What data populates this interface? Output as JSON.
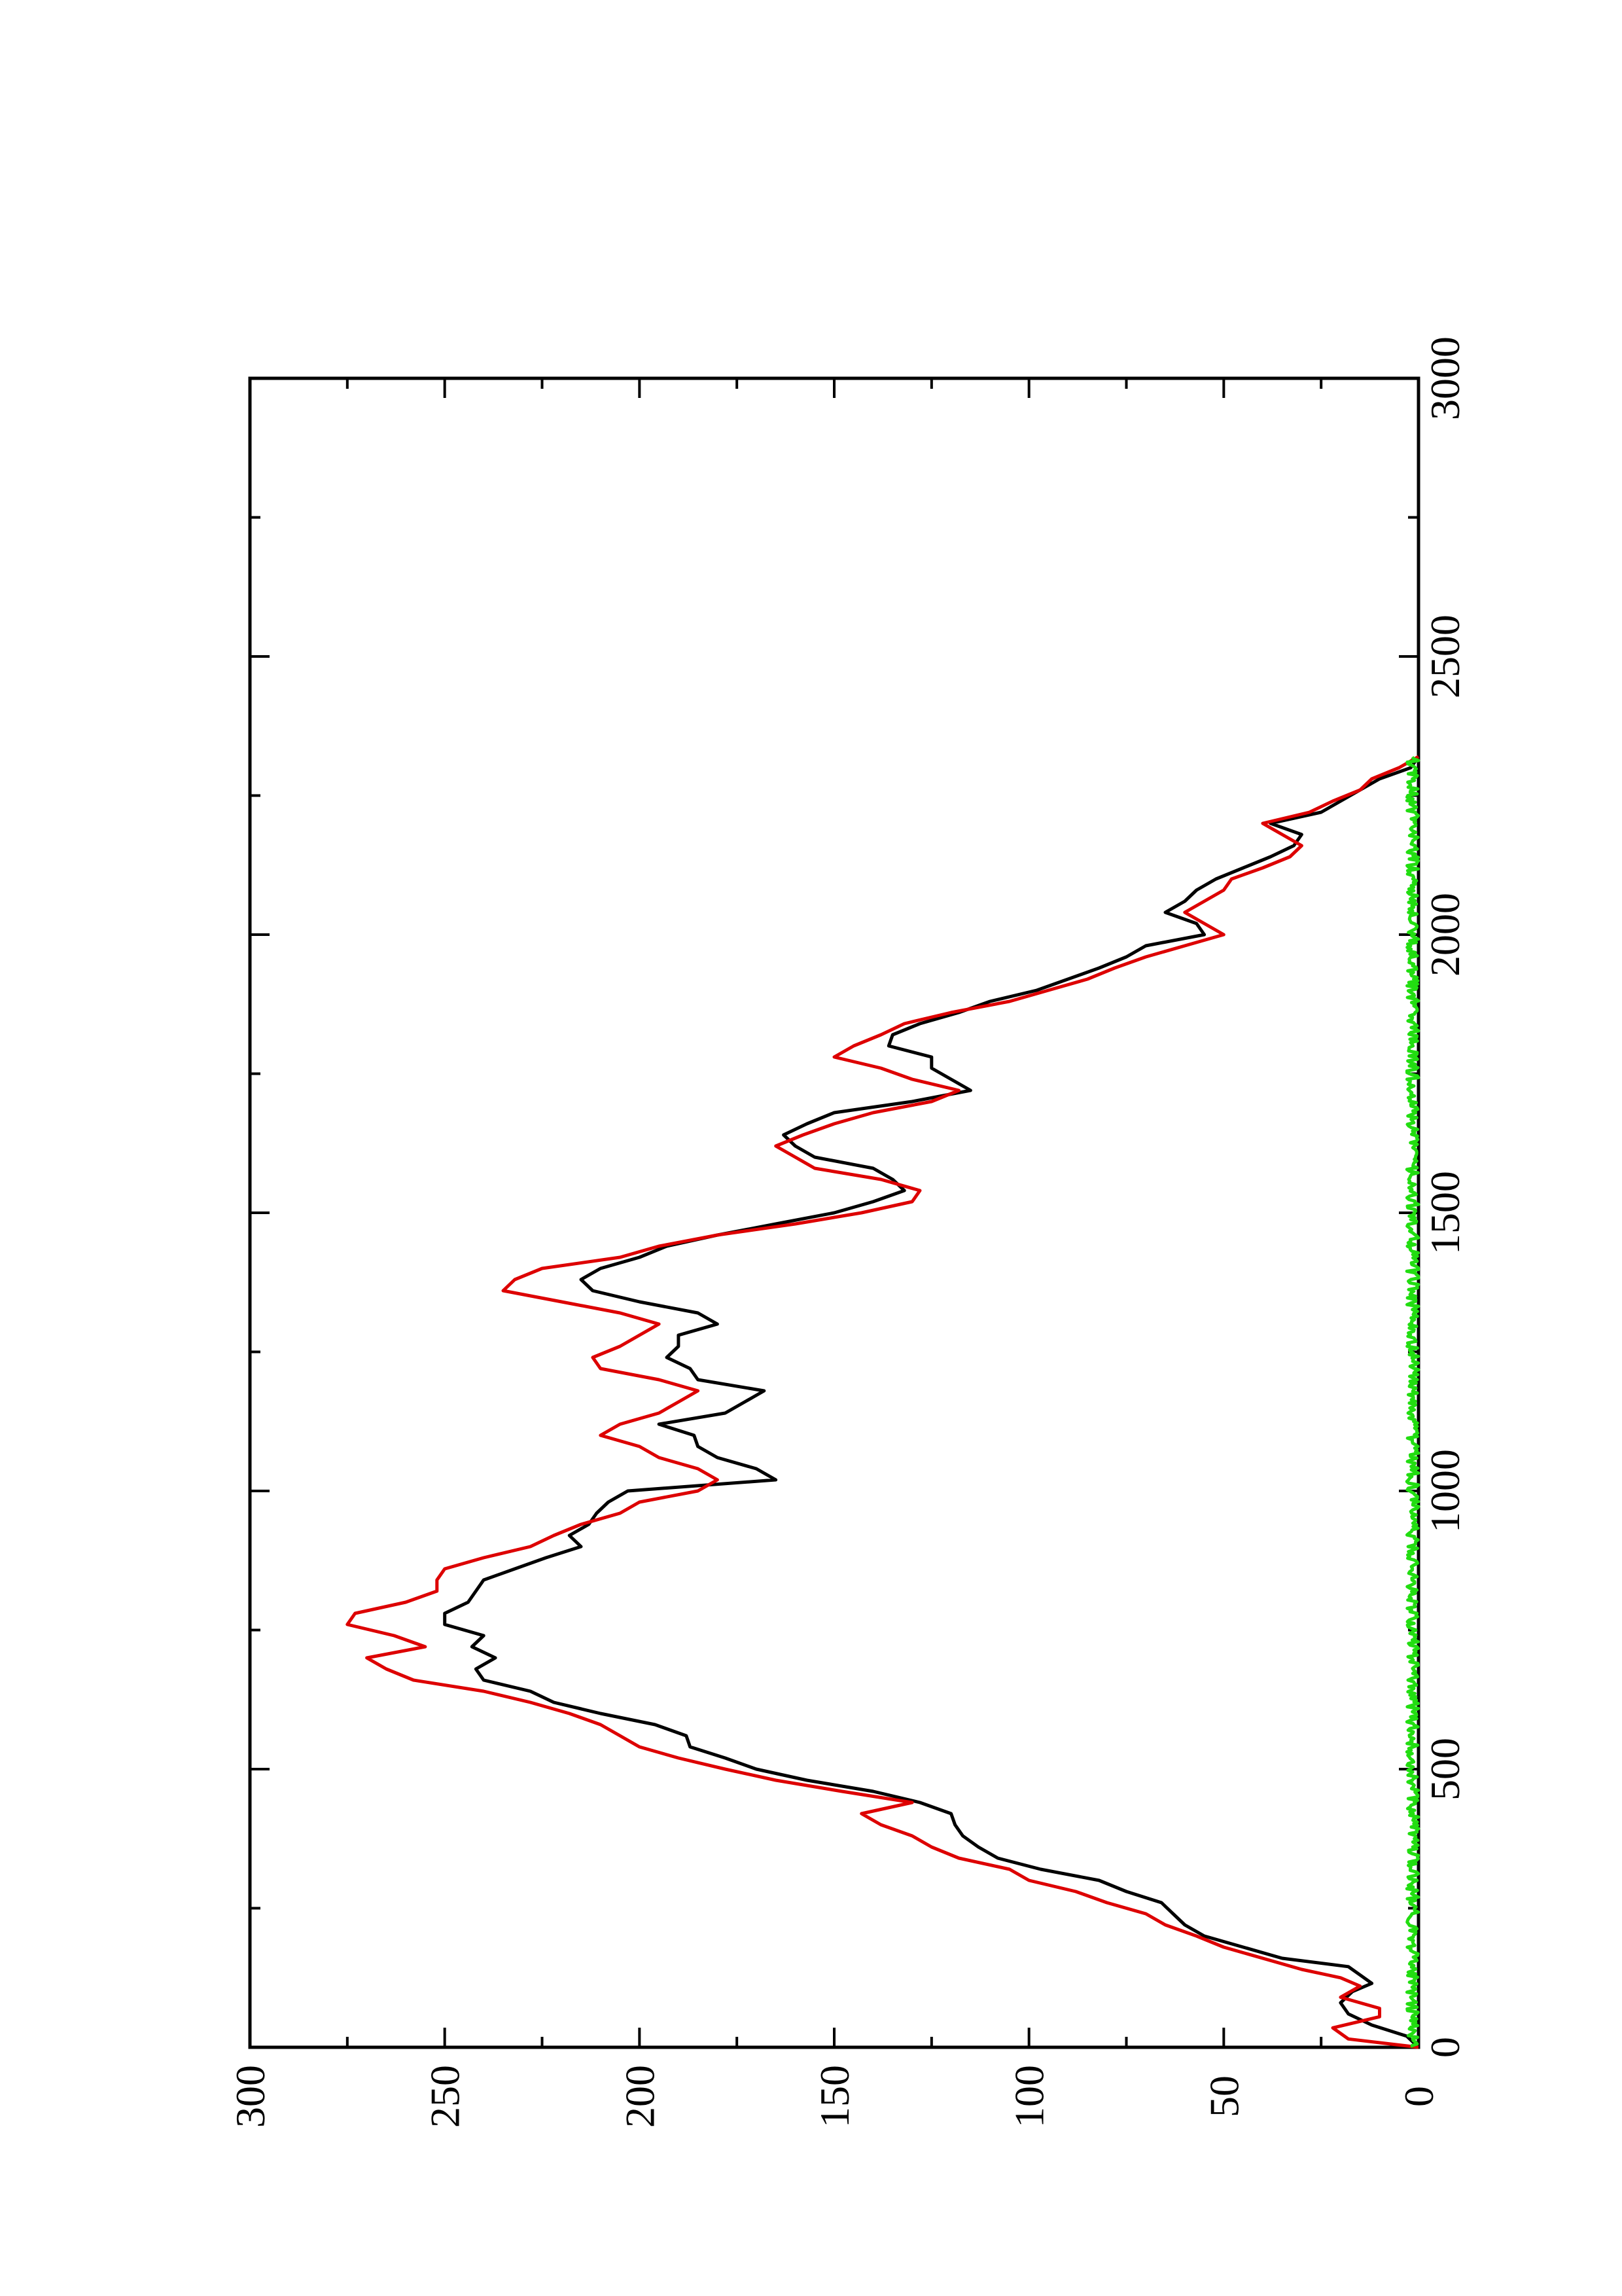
{
  "chart_data": {
    "type": "line",
    "orientation": "rotated-90-ccw",
    "title": "",
    "xlabel": "",
    "ylabel": "",
    "xlim": [
      0,
      3000
    ],
    "ylim": [
      0,
      300
    ],
    "x_ticks": [
      "0",
      "500",
      "1000",
      "1500",
      "2000",
      "2500",
      "3000"
    ],
    "y_ticks": [
      "0",
      "50",
      "100",
      "150",
      "200",
      "250",
      "300"
    ],
    "grid": false,
    "legend": "none",
    "series": [
      {
        "color": "#000000",
        "points": [
          [
            0,
            0
          ],
          [
            20,
            3
          ],
          [
            40,
            12
          ],
          [
            60,
            18
          ],
          [
            80,
            20
          ],
          [
            100,
            17
          ],
          [
            115,
            12
          ],
          [
            130,
            15
          ],
          [
            145,
            18
          ],
          [
            160,
            35
          ],
          [
            180,
            45
          ],
          [
            200,
            55
          ],
          [
            220,
            60
          ],
          [
            240,
            63
          ],
          [
            260,
            66
          ],
          [
            280,
            75
          ],
          [
            300,
            82
          ],
          [
            320,
            97
          ],
          [
            340,
            108
          ],
          [
            360,
            113
          ],
          [
            380,
            117
          ],
          [
            400,
            119
          ],
          [
            420,
            120
          ],
          [
            440,
            128
          ],
          [
            460,
            140
          ],
          [
            480,
            157
          ],
          [
            500,
            170
          ],
          [
            520,
            178
          ],
          [
            540,
            187
          ],
          [
            560,
            188
          ],
          [
            580,
            196
          ],
          [
            600,
            210
          ],
          [
            620,
            222
          ],
          [
            640,
            228
          ],
          [
            660,
            240
          ],
          [
            680,
            242
          ],
          [
            700,
            237
          ],
          [
            720,
            243
          ],
          [
            740,
            240
          ],
          [
            760,
            250
          ],
          [
            780,
            250
          ],
          [
            800,
            244
          ],
          [
            820,
            242
          ],
          [
            840,
            240
          ],
          [
            860,
            232
          ],
          [
            880,
            224
          ],
          [
            900,
            215
          ],
          [
            920,
            218
          ],
          [
            940,
            213
          ],
          [
            960,
            211
          ],
          [
            980,
            208
          ],
          [
            1000,
            203
          ],
          [
            1020,
            165
          ],
          [
            1040,
            170
          ],
          [
            1060,
            180
          ],
          [
            1080,
            185
          ],
          [
            1100,
            186
          ],
          [
            1120,
            195
          ],
          [
            1140,
            178
          ],
          [
            1160,
            173
          ],
          [
            1180,
            168
          ],
          [
            1200,
            185
          ],
          [
            1220,
            187
          ],
          [
            1240,
            193
          ],
          [
            1260,
            190
          ],
          [
            1280,
            190
          ],
          [
            1300,
            180
          ],
          [
            1320,
            185
          ],
          [
            1340,
            200
          ],
          [
            1360,
            212
          ],
          [
            1380,
            215
          ],
          [
            1400,
            210
          ],
          [
            1420,
            200
          ],
          [
            1440,
            193
          ],
          [
            1460,
            180
          ],
          [
            1480,
            165
          ],
          [
            1500,
            150
          ],
          [
            1520,
            140
          ],
          [
            1540,
            132
          ],
          [
            1560,
            135
          ],
          [
            1580,
            140
          ],
          [
            1600,
            155
          ],
          [
            1620,
            160
          ],
          [
            1640,
            163
          ],
          [
            1660,
            157
          ],
          [
            1680,
            150
          ],
          [
            1700,
            130
          ],
          [
            1720,
            115
          ],
          [
            1740,
            120
          ],
          [
            1760,
            125
          ],
          [
            1780,
            125
          ],
          [
            1800,
            136
          ],
          [
            1820,
            135
          ],
          [
            1840,
            128
          ],
          [
            1860,
            118
          ],
          [
            1880,
            110
          ],
          [
            1900,
            98
          ],
          [
            1920,
            90
          ],
          [
            1940,
            82
          ],
          [
            1960,
            75
          ],
          [
            1980,
            70
          ],
          [
            2000,
            55
          ],
          [
            2020,
            57
          ],
          [
            2040,
            65
          ],
          [
            2060,
            60
          ],
          [
            2080,
            57
          ],
          [
            2100,
            52
          ],
          [
            2120,
            45
          ],
          [
            2140,
            38
          ],
          [
            2160,
            32
          ],
          [
            2180,
            30
          ],
          [
            2200,
            38
          ],
          [
            2220,
            25
          ],
          [
            2240,
            20
          ],
          [
            2260,
            15
          ],
          [
            2280,
            10
          ],
          [
            2300,
            2
          ],
          [
            2320,
            0
          ]
        ]
      },
      {
        "color": "#dd0000",
        "points": [
          [
            0,
            0
          ],
          [
            15,
            18
          ],
          [
            35,
            22
          ],
          [
            55,
            10
          ],
          [
            70,
            10
          ],
          [
            90,
            20
          ],
          [
            110,
            15
          ],
          [
            125,
            20
          ],
          [
            140,
            30
          ],
          [
            160,
            40
          ],
          [
            180,
            50
          ],
          [
            200,
            57
          ],
          [
            220,
            65
          ],
          [
            240,
            70
          ],
          [
            260,
            80
          ],
          [
            280,
            88
          ],
          [
            300,
            100
          ],
          [
            320,
            105
          ],
          [
            340,
            118
          ],
          [
            360,
            125
          ],
          [
            380,
            130
          ],
          [
            400,
            138
          ],
          [
            420,
            143
          ],
          [
            440,
            130
          ],
          [
            460,
            148
          ],
          [
            480,
            165
          ],
          [
            500,
            178
          ],
          [
            520,
            190
          ],
          [
            540,
            200
          ],
          [
            560,
            205
          ],
          [
            580,
            210
          ],
          [
            600,
            218
          ],
          [
            620,
            228
          ],
          [
            640,
            240
          ],
          [
            660,
            258
          ],
          [
            680,
            265
          ],
          [
            700,
            270
          ],
          [
            720,
            255
          ],
          [
            740,
            263
          ],
          [
            760,
            275
          ],
          [
            780,
            273
          ],
          [
            800,
            260
          ],
          [
            820,
            252
          ],
          [
            840,
            252
          ],
          [
            860,
            250
          ],
          [
            880,
            240
          ],
          [
            900,
            228
          ],
          [
            920,
            222
          ],
          [
            940,
            215
          ],
          [
            960,
            205
          ],
          [
            980,
            200
          ],
          [
            1000,
            185
          ],
          [
            1020,
            180
          ],
          [
            1040,
            185
          ],
          [
            1060,
            195
          ],
          [
            1080,
            200
          ],
          [
            1100,
            210
          ],
          [
            1120,
            205
          ],
          [
            1140,
            195
          ],
          [
            1160,
            190
          ],
          [
            1180,
            185
          ],
          [
            1200,
            195
          ],
          [
            1220,
            210
          ],
          [
            1240,
            212
          ],
          [
            1260,
            205
          ],
          [
            1280,
            200
          ],
          [
            1300,
            195
          ],
          [
            1320,
            205
          ],
          [
            1340,
            220
          ],
          [
            1360,
            235
          ],
          [
            1380,
            232
          ],
          [
            1400,
            225
          ],
          [
            1420,
            205
          ],
          [
            1440,
            195
          ],
          [
            1460,
            180
          ],
          [
            1480,
            160
          ],
          [
            1500,
            143
          ],
          [
            1520,
            130
          ],
          [
            1540,
            128
          ],
          [
            1560,
            138
          ],
          [
            1580,
            155
          ],
          [
            1600,
            160
          ],
          [
            1620,
            165
          ],
          [
            1640,
            158
          ],
          [
            1660,
            150
          ],
          [
            1680,
            140
          ],
          [
            1700,
            125
          ],
          [
            1720,
            118
          ],
          [
            1740,
            130
          ],
          [
            1760,
            138
          ],
          [
            1780,
            150
          ],
          [
            1800,
            145
          ],
          [
            1820,
            138
          ],
          [
            1840,
            132
          ],
          [
            1860,
            120
          ],
          [
            1880,
            105
          ],
          [
            1900,
            95
          ],
          [
            1920,
            85
          ],
          [
            1940,
            78
          ],
          [
            1960,
            70
          ],
          [
            1980,
            60
          ],
          [
            2000,
            50
          ],
          [
            2020,
            55
          ],
          [
            2040,
            60
          ],
          [
            2060,
            55
          ],
          [
            2080,
            50
          ],
          [
            2100,
            48
          ],
          [
            2120,
            40
          ],
          [
            2140,
            33
          ],
          [
            2160,
            30
          ],
          [
            2180,
            35
          ],
          [
            2200,
            40
          ],
          [
            2220,
            28
          ],
          [
            2240,
            22
          ],
          [
            2260,
            15
          ],
          [
            2280,
            12
          ],
          [
            2300,
            5
          ],
          [
            2320,
            0
          ]
        ]
      },
      {
        "color": "#22dd11",
        "points": [
          [
            0,
            0
          ],
          [
            2320,
            0
          ]
        ],
        "noise_amplitude": 3
      }
    ]
  }
}
